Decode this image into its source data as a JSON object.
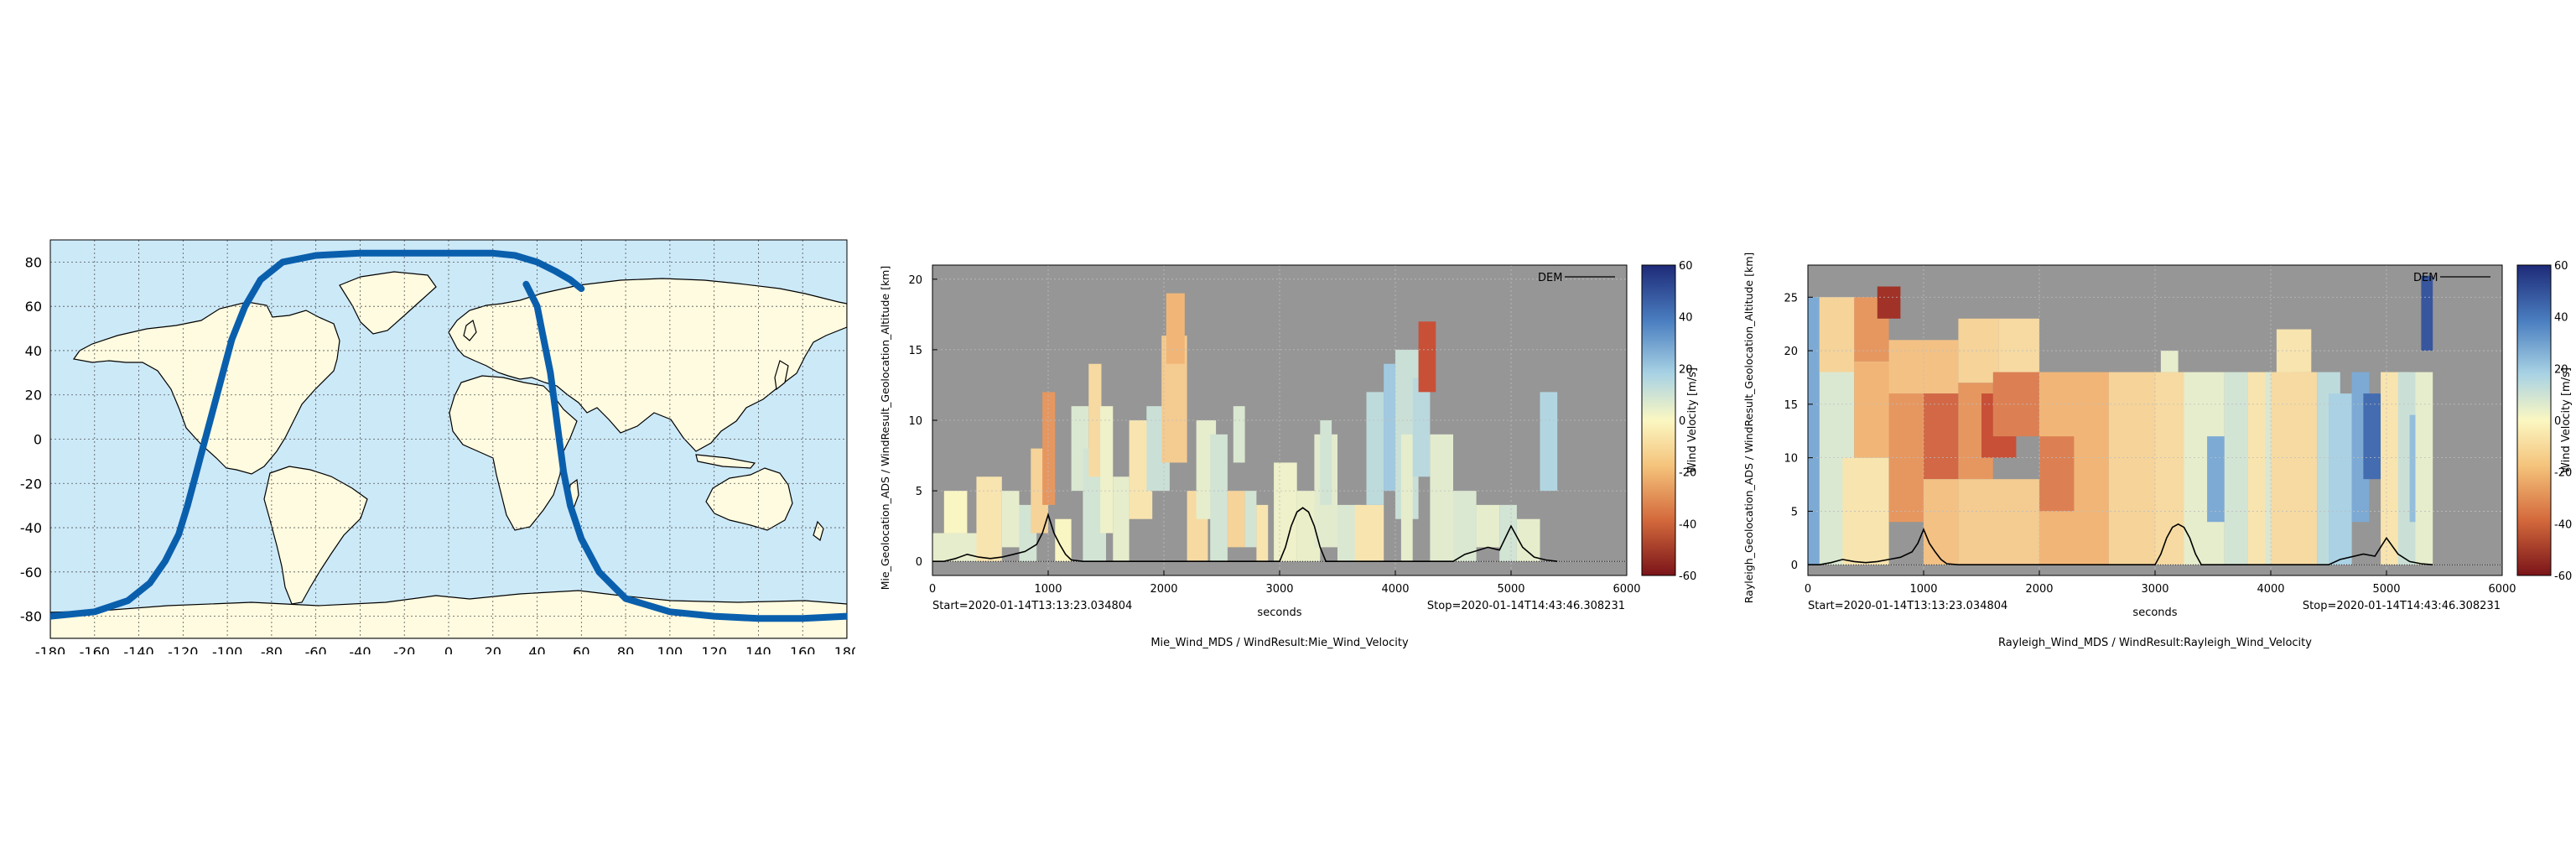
{
  "colors": {
    "ocean": "#cce9f8",
    "land": "#fffbe0",
    "track": "#0a5fad",
    "plot_bg": "#969696",
    "dem_line": "#000000"
  },
  "chart_data": [
    {
      "type": "scatter",
      "kind": "map-ground-track",
      "xlim": [
        -180,
        180
      ],
      "ylim": [
        -90,
        90
      ],
      "x_ticks": [
        "-180",
        "-160",
        "-140",
        "-120",
        "-100",
        "-80",
        "-60",
        "-40",
        "-20",
        "0",
        "20",
        "40",
        "60",
        "80",
        "100",
        "120",
        "140",
        "160",
        "180"
      ],
      "y_ticks": [
        "80",
        "60",
        "40",
        "20",
        "0",
        "-20",
        "-40",
        "-60",
        "-80"
      ],
      "grid": true,
      "series": [
        {
          "x": [
            -180,
            -160,
            -145,
            -135,
            -128,
            -122,
            -118,
            -114,
            -110,
            -106,
            -102,
            -98,
            -92,
            -85,
            -75,
            -60,
            -40,
            -20,
            0,
            20,
            30,
            40,
            48,
            55,
            60
          ],
          "y": [
            -80,
            -78,
            -73,
            -65,
            -55,
            -43,
            -30,
            -15,
            0,
            15,
            30,
            45,
            60,
            72,
            80,
            83,
            84,
            84,
            84,
            84,
            83,
            80,
            76,
            72,
            68
          ]
        },
        {
          "x": [
            35,
            40,
            42,
            44,
            46,
            48,
            50,
            52,
            55,
            60,
            68,
            80,
            100,
            120,
            140,
            160,
            180
          ],
          "y": [
            70,
            60,
            50,
            40,
            30,
            15,
            0,
            -15,
            -30,
            -45,
            -60,
            -72,
            -78,
            -80,
            -81,
            -81,
            -80
          ]
        }
      ]
    },
    {
      "type": "heatmap",
      "xlabel": "seconds",
      "ylabel": "Mie_Geolocation_ADS / WindResult_Geolocation_Altitude [km]",
      "caption": "Mie_Wind_MDS / WindResult:Mie_Wind_Velocity",
      "start_label": "Start=2020-01-14T13:13:23.034804",
      "stop_label": "Stop=2020-01-14T14:43:46.308231",
      "xlim": [
        0,
        6000
      ],
      "ylim": [
        -1,
        21
      ],
      "x_ticks": [
        "0",
        "1000",
        "2000",
        "3000",
        "4000",
        "5000",
        "6000"
      ],
      "y_ticks": [
        "20",
        "15",
        "10",
        "5",
        "0"
      ],
      "legend": "DEM",
      "colorbar_label": "Wind Velocity [m/s]",
      "colorbar_ticks": [
        "60",
        "40",
        "20",
        "0",
        "-20",
        "-40",
        "-60"
      ],
      "clim": [
        -60,
        60
      ],
      "grid": true,
      "cells": [
        [
          0,
          400,
          0,
          2,
          5
        ],
        [
          100,
          300,
          2,
          5,
          0
        ],
        [
          380,
          600,
          0,
          6,
          -5
        ],
        [
          600,
          750,
          1,
          5,
          5
        ],
        [
          750,
          900,
          0,
          4,
          10
        ],
        [
          850,
          1000,
          2,
          8,
          -10
        ],
        [
          950,
          1060,
          4,
          12,
          -25
        ],
        [
          1060,
          1200,
          0,
          3,
          0
        ],
        [
          1200,
          1350,
          5,
          11,
          8
        ],
        [
          1300,
          1500,
          0,
          8,
          10
        ],
        [
          1350,
          1460,
          6,
          14,
          -8
        ],
        [
          1450,
          1560,
          2,
          11,
          3
        ],
        [
          1560,
          1700,
          0,
          6,
          5
        ],
        [
          1700,
          1900,
          3,
          10,
          -5
        ],
        [
          1850,
          2050,
          5,
          11,
          12
        ],
        [
          1980,
          2200,
          7,
          16,
          -12
        ],
        [
          2020,
          2180,
          14,
          19,
          -18
        ],
        [
          2200,
          2380,
          0,
          5,
          -8
        ],
        [
          2280,
          2450,
          3,
          10,
          5
        ],
        [
          2400,
          2550,
          0,
          9,
          10
        ],
        [
          2550,
          2700,
          1,
          5,
          -10
        ],
        [
          2600,
          2700,
          7,
          11,
          8
        ],
        [
          2700,
          2800,
          1,
          5,
          10
        ],
        [
          2800,
          2900,
          0,
          4,
          -5
        ],
        [
          2950,
          3150,
          0,
          7,
          3
        ],
        [
          3150,
          3350,
          0,
          5,
          4
        ],
        [
          3300,
          3500,
          1,
          9,
          6
        ],
        [
          3350,
          3450,
          4,
          10,
          10
        ],
        [
          3500,
          3700,
          0,
          4,
          8
        ],
        [
          3650,
          3900,
          0,
          4,
          -5
        ],
        [
          3750,
          3900,
          4,
          12,
          15
        ],
        [
          3900,
          4050,
          5,
          14,
          22
        ],
        [
          4000,
          4200,
          3,
          15,
          12
        ],
        [
          4050,
          4150,
          0,
          9,
          5
        ],
        [
          4150,
          4300,
          6,
          13,
          16
        ],
        [
          4200,
          4350,
          12,
          17,
          -40
        ],
        [
          4300,
          4500,
          0,
          9,
          6
        ],
        [
          4500,
          4700,
          0,
          5,
          8
        ],
        [
          4700,
          4900,
          1,
          4,
          5
        ],
        [
          4900,
          5050,
          0,
          4,
          10
        ],
        [
          5050,
          5250,
          0,
          3,
          5
        ],
        [
          5250,
          5400,
          5,
          12,
          18
        ]
      ],
      "dem_x": [
        0,
        100,
        200,
        300,
        400,
        500,
        600,
        700,
        800,
        900,
        950,
        1000,
        1050,
        1100,
        1150,
        1200,
        1300,
        1400,
        1500,
        2000,
        2500,
        3000,
        3050,
        3100,
        3150,
        3200,
        3250,
        3300,
        3350,
        3400,
        3500,
        4000,
        4500,
        4600,
        4800,
        4900,
        5000,
        5100,
        5200,
        5300,
        5400
      ],
      "dem_y": [
        0,
        0,
        0.2,
        0.5,
        0.3,
        0.2,
        0.3,
        0.5,
        0.7,
        1.2,
        2.0,
        3.3,
        2.0,
        1.2,
        0.5,
        0.1,
        0,
        0,
        0,
        0,
        0,
        0,
        1.0,
        2.5,
        3.5,
        3.8,
        3.5,
        2.5,
        1.0,
        0,
        0,
        0,
        0,
        0.5,
        1.0,
        0.8,
        2.5,
        1.0,
        0.3,
        0.1,
        0
      ],
      "surface_y": 0
    },
    {
      "type": "heatmap",
      "xlabel": "seconds",
      "ylabel": "Rayleigh_Geolocation_ADS / WindResult_Geolocation_Altitude [km]",
      "caption": "Rayleigh_Wind_MDS / WindResult:Rayleigh_Wind_Velocity",
      "start_label": "Start=2020-01-14T13:13:23.034804",
      "stop_label": "Stop=2020-01-14T14:43:46.308231",
      "xlim": [
        0,
        6000
      ],
      "ylim": [
        -1,
        28
      ],
      "x_ticks": [
        "0",
        "1000",
        "2000",
        "3000",
        "4000",
        "5000",
        "6000"
      ],
      "y_ticks": [
        "25",
        "20",
        "15",
        "10",
        "5",
        "0"
      ],
      "legend": "DEM",
      "colorbar_label": "Wind Velocity [m/s]",
      "colorbar_ticks": [
        "60",
        "40",
        "20",
        "0",
        "-20",
        "-40",
        "-60"
      ],
      "clim": [
        -60,
        60
      ],
      "grid": true,
      "cells": [
        [
          0,
          400,
          0,
          25,
          8
        ],
        [
          0,
          100,
          0,
          25,
          30
        ],
        [
          100,
          400,
          18,
          25,
          -10
        ],
        [
          400,
          700,
          19,
          25,
          -25
        ],
        [
          600,
          800,
          23,
          26,
          -50
        ],
        [
          400,
          800,
          10,
          19,
          -18
        ],
        [
          300,
          700,
          0,
          10,
          -5
        ],
        [
          700,
          1300,
          16,
          21,
          -15
        ],
        [
          700,
          1000,
          4,
          16,
          -25
        ],
        [
          1000,
          1300,
          8,
          16,
          -35
        ],
        [
          1000,
          1300,
          0,
          8,
          -15
        ],
        [
          1300,
          1650,
          17,
          23,
          -10
        ],
        [
          1300,
          1600,
          8,
          17,
          -25
        ],
        [
          1500,
          1800,
          10,
          16,
          -40
        ],
        [
          1600,
          2000,
          12,
          18,
          -30
        ],
        [
          1300,
          2000,
          0,
          8,
          -12
        ],
        [
          1650,
          2000,
          18,
          23,
          -8
        ],
        [
          2000,
          2600,
          0,
          18,
          -18
        ],
        [
          2000,
          2300,
          5,
          12,
          -30
        ],
        [
          2600,
          3000,
          0,
          18,
          -10
        ],
        [
          3000,
          3250,
          0,
          18,
          -8
        ],
        [
          3050,
          3200,
          18,
          20,
          5
        ],
        [
          3250,
          3600,
          0,
          18,
          5
        ],
        [
          3450,
          3600,
          4,
          12,
          30
        ],
        [
          3600,
          3800,
          0,
          18,
          10
        ],
        [
          3800,
          4000,
          0,
          18,
          -5
        ],
        [
          3950,
          4200,
          0,
          18,
          8
        ],
        [
          4000,
          4400,
          0,
          18,
          -8
        ],
        [
          4050,
          4350,
          18,
          22,
          -5
        ],
        [
          4400,
          4600,
          0,
          18,
          15
        ],
        [
          4500,
          4700,
          0,
          16,
          20
        ],
        [
          4700,
          4850,
          4,
          18,
          30
        ],
        [
          4800,
          4950,
          8,
          16,
          45
        ],
        [
          4950,
          5200,
          0,
          18,
          -5
        ],
        [
          5100,
          5250,
          0,
          18,
          12
        ],
        [
          5200,
          5300,
          4,
          14,
          25
        ],
        [
          5250,
          5400,
          0,
          18,
          5
        ],
        [
          5300,
          5400,
          20,
          27,
          50
        ]
      ],
      "dem_x": [
        0,
        100,
        200,
        300,
        400,
        500,
        600,
        700,
        800,
        900,
        950,
        1000,
        1050,
        1100,
        1150,
        1200,
        1300,
        1400,
        1500,
        2000,
        2500,
        3000,
        3050,
        3100,
        3150,
        3200,
        3250,
        3300,
        3350,
        3400,
        3500,
        4000,
        4500,
        4600,
        4800,
        4900,
        5000,
        5100,
        5200,
        5300,
        5400
      ],
      "dem_y": [
        0,
        0,
        0.2,
        0.5,
        0.3,
        0.2,
        0.3,
        0.5,
        0.7,
        1.2,
        2.0,
        3.3,
        2.0,
        1.2,
        0.5,
        0.1,
        0,
        0,
        0,
        0,
        0,
        0,
        1.0,
        2.5,
        3.5,
        3.8,
        3.5,
        2.5,
        1.0,
        0,
        0,
        0,
        0,
        0.5,
        1.0,
        0.8,
        2.5,
        1.0,
        0.3,
        0.1,
        0
      ],
      "surface_y": 0
    }
  ]
}
